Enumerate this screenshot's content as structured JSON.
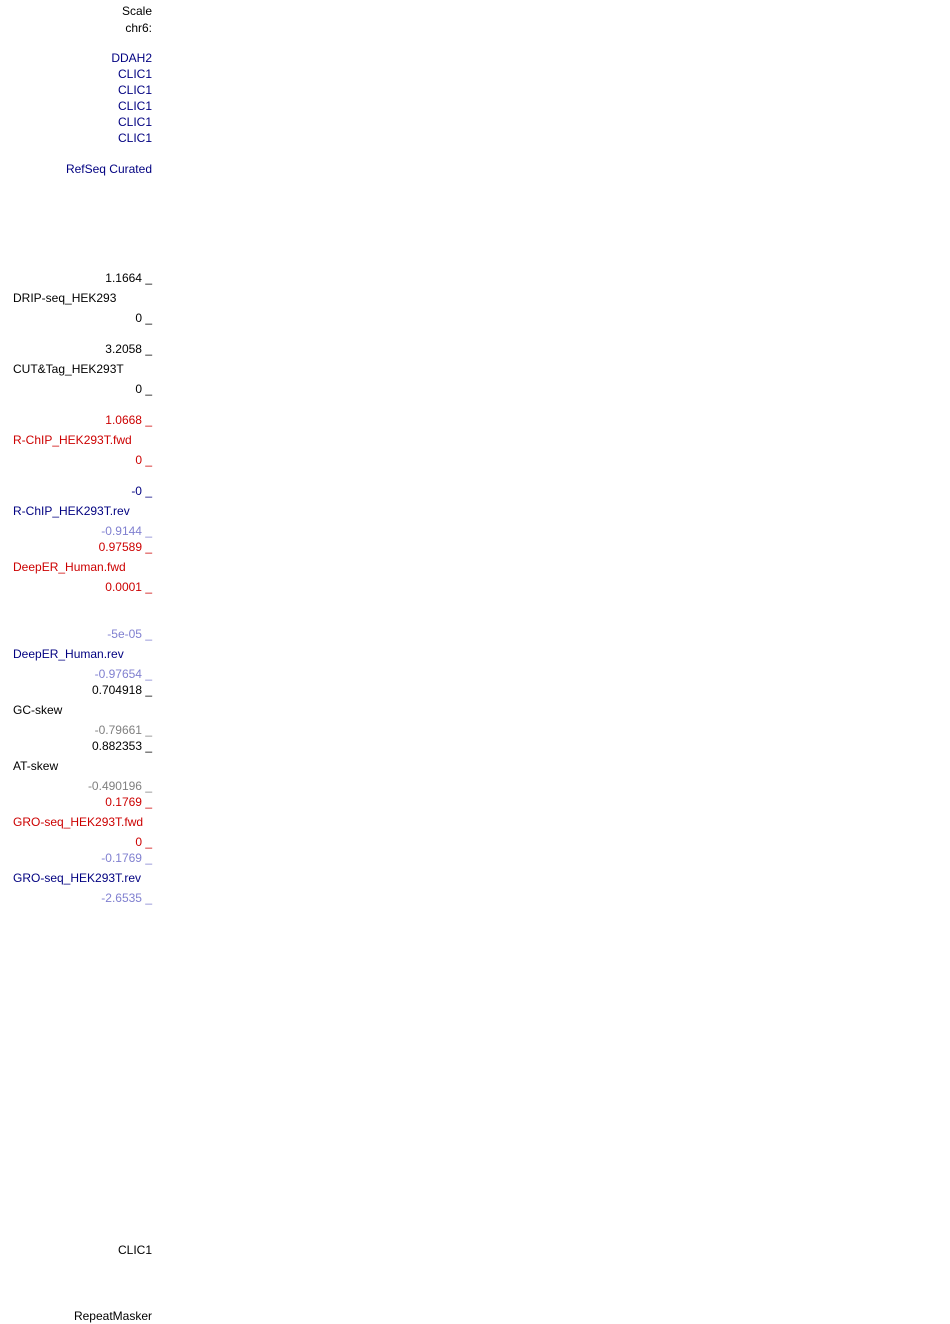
{
  "header": {
    "scale_label": "Scale",
    "chrom_label": "chr6:"
  },
  "genes": [
    "DDAH2",
    "CLIC1",
    "CLIC1",
    "CLIC1",
    "CLIC1",
    "CLIC1"
  ],
  "refseq": {
    "label": "RefSeq Curated"
  },
  "tracks": {
    "drip": {
      "max": "1.1664 _",
      "name": "DRIP-seq_HEK293",
      "min": "0 _"
    },
    "cuttag": {
      "max": "3.2058 _",
      "name": "CUT&Tag_HEK293T",
      "min": "0 _"
    },
    "rchip_fwd": {
      "max": "1.0668 _",
      "name": "R-ChIP_HEK293T.fwd",
      "min": "0 _"
    },
    "rchip_rev": {
      "max": "-0 _",
      "name": "R-ChIP_HEK293T.rev",
      "min": "-0.9144 _"
    },
    "deeper_fwd": {
      "max": "0.97589 _",
      "name": "DeepER_Human.fwd",
      "min": "0.0001 _"
    },
    "deeper_rev": {
      "max": "-5e-05 _",
      "name": "DeepER_Human.rev",
      "min": "-0.97654 _"
    },
    "gc_skew": {
      "max": "0.704918 _",
      "name": "GC-skew",
      "min": "-0.79661 _"
    },
    "at_skew": {
      "max": "0.882353 _",
      "name": "AT-skew",
      "min": "-0.490196 _"
    },
    "gro_fwd": {
      "max": "0.1769 _",
      "name": "GRO-seq_HEK293T.fwd",
      "min": "0 _"
    },
    "gro_rev": {
      "max": "-0.1769 _",
      "name": "GRO-seq_HEK293T.rev",
      "min": "-2.6535 _"
    }
  },
  "bottom": {
    "gene_label": "CLIC1",
    "repeat_label": "RepeatMasker"
  },
  "colors": {
    "navy": "#000080",
    "red": "#cc0000",
    "light_blue": "#8080d0",
    "gray": "#808080"
  }
}
